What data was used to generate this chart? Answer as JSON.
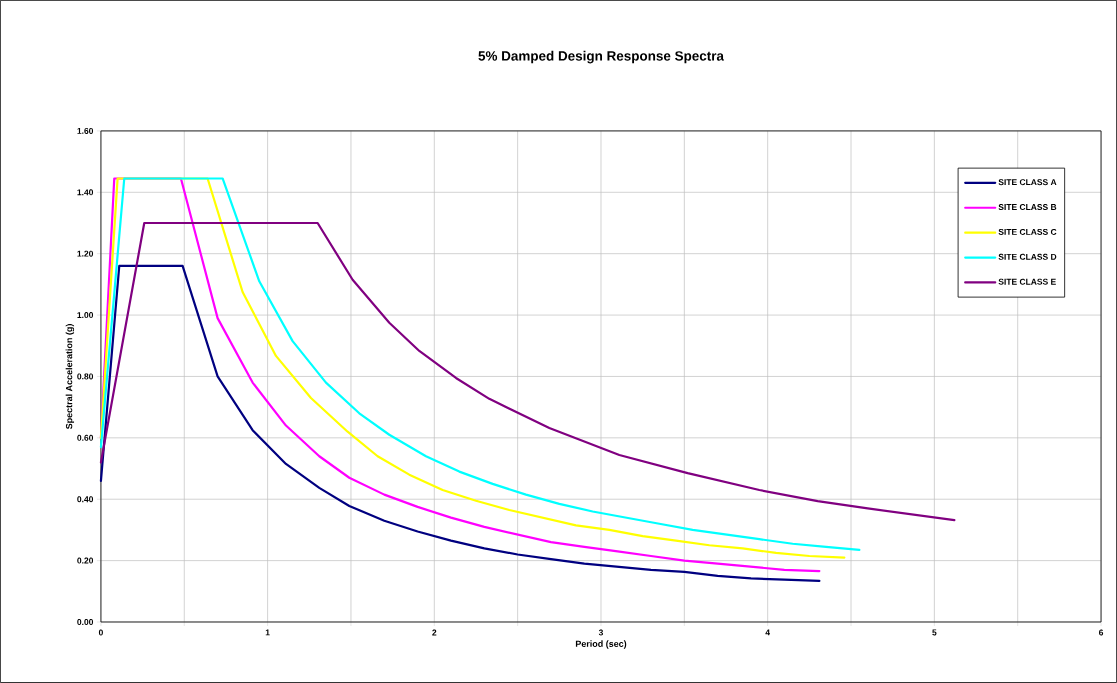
{
  "chart_data": {
    "type": "line",
    "title": "5% Damped Design Response Spectra",
    "xlabel": "Period (sec)",
    "ylabel": "Spectral Acceleration (g)",
    "xlim": [
      0,
      6
    ],
    "ylim": [
      0,
      1.6
    ],
    "xticks": [
      0,
      {
        "value": 0.5,
        "label": null
      },
      1,
      {
        "value": 1.5,
        "label": null
      },
      2,
      {
        "value": 2.5,
        "label": null
      },
      3,
      {
        "value": 3.5,
        "label": null
      },
      4,
      {
        "value": 4.5,
        "label": null
      },
      5,
      {
        "value": 5.5,
        "label": null
      },
      6
    ],
    "yticks": [
      {
        "value": 0,
        "label": "0.00"
      },
      {
        "value": 0.2,
        "label": "0.20"
      },
      {
        "value": 0.4,
        "label": "0.40"
      },
      {
        "value": 0.6,
        "label": "0.60"
      },
      {
        "value": 0.8,
        "label": "0.80"
      },
      {
        "value": 1.0,
        "label": "1.00"
      },
      {
        "value": 1.2,
        "label": "1.20"
      },
      {
        "value": 1.4,
        "label": "1.40"
      },
      {
        "value": 1.6,
        "label": "1.60"
      }
    ],
    "grid": true,
    "legend": "top right",
    "marker": "none",
    "line_style": "solid",
    "series": [
      {
        "name": "SITE CLASS A",
        "color": "#000080",
        "x": [
          0,
          0.11,
          0.49,
          0.7,
          0.91,
          1.11,
          1.31,
          1.49,
          1.7,
          1.9,
          2.1,
          2.3,
          2.5,
          2.7,
          2.9,
          3.1,
          3.3,
          3.5,
          3.7,
          3.9,
          4.1,
          4.31
        ],
        "values": [
          0.46,
          1.16,
          1.16,
          0.8,
          0.625,
          0.515,
          0.437,
          0.378,
          0.33,
          0.295,
          0.265,
          0.24,
          0.22,
          0.205,
          0.19,
          0.18,
          0.17,
          0.163,
          0.15,
          0.142,
          0.138,
          0.134
        ]
      },
      {
        "name": "SITE CLASS B",
        "color": "#ff00ff",
        "x": [
          0,
          0.08,
          0.48,
          0.7,
          0.91,
          1.11,
          1.31,
          1.49,
          1.7,
          1.9,
          2.1,
          2.3,
          2.5,
          2.7,
          2.9,
          3.1,
          3.3,
          3.5,
          3.7,
          3.9,
          4.1,
          4.31
        ],
        "values": [
          0.6,
          1.445,
          1.445,
          0.99,
          0.78,
          0.64,
          0.54,
          0.47,
          0.415,
          0.375,
          0.34,
          0.31,
          0.285,
          0.26,
          0.245,
          0.23,
          0.215,
          0.2,
          0.19,
          0.18,
          0.17,
          0.166
        ]
      },
      {
        "name": "SITE CLASS C",
        "color": "#ffff00",
        "x": [
          0,
          0.1,
          0.64,
          0.85,
          1.05,
          1.26,
          1.48,
          1.66,
          1.85,
          2.05,
          2.25,
          2.45,
          2.65,
          2.85,
          3.05,
          3.25,
          3.45,
          3.65,
          3.85,
          4.05,
          4.25,
          4.46
        ],
        "values": [
          0.6,
          1.445,
          1.445,
          1.075,
          0.867,
          0.73,
          0.62,
          0.54,
          0.48,
          0.43,
          0.395,
          0.365,
          0.34,
          0.315,
          0.3,
          0.28,
          0.265,
          0.25,
          0.24,
          0.225,
          0.215,
          0.21
        ]
      },
      {
        "name": "SITE CLASS D",
        "color": "#00ffff",
        "x": [
          0,
          0.14,
          0.73,
          0.95,
          1.15,
          1.35,
          1.55,
          1.73,
          1.95,
          2.15,
          2.35,
          2.55,
          2.75,
          2.95,
          3.15,
          3.35,
          3.55,
          3.75,
          3.95,
          4.15,
          4.35,
          4.55
        ],
        "values": [
          0.57,
          1.445,
          1.445,
          1.11,
          0.915,
          0.78,
          0.68,
          0.61,
          0.54,
          0.49,
          0.45,
          0.415,
          0.385,
          0.36,
          0.34,
          0.32,
          0.3,
          0.285,
          0.27,
          0.255,
          0.245,
          0.235
        ]
      },
      {
        "name": "SITE CLASS E",
        "color": "#800080",
        "x": [
          0,
          0.26,
          1.3,
          1.51,
          1.73,
          1.91,
          2.13,
          2.33,
          2.69,
          3.11,
          3.52,
          3.95,
          4.3,
          4.6,
          5.12
        ],
        "values": [
          0.52,
          1.3,
          1.3,
          1.115,
          0.975,
          0.883,
          0.795,
          0.727,
          0.632,
          0.544,
          0.485,
          0.43,
          0.394,
          0.37,
          0.332
        ]
      }
    ]
  }
}
